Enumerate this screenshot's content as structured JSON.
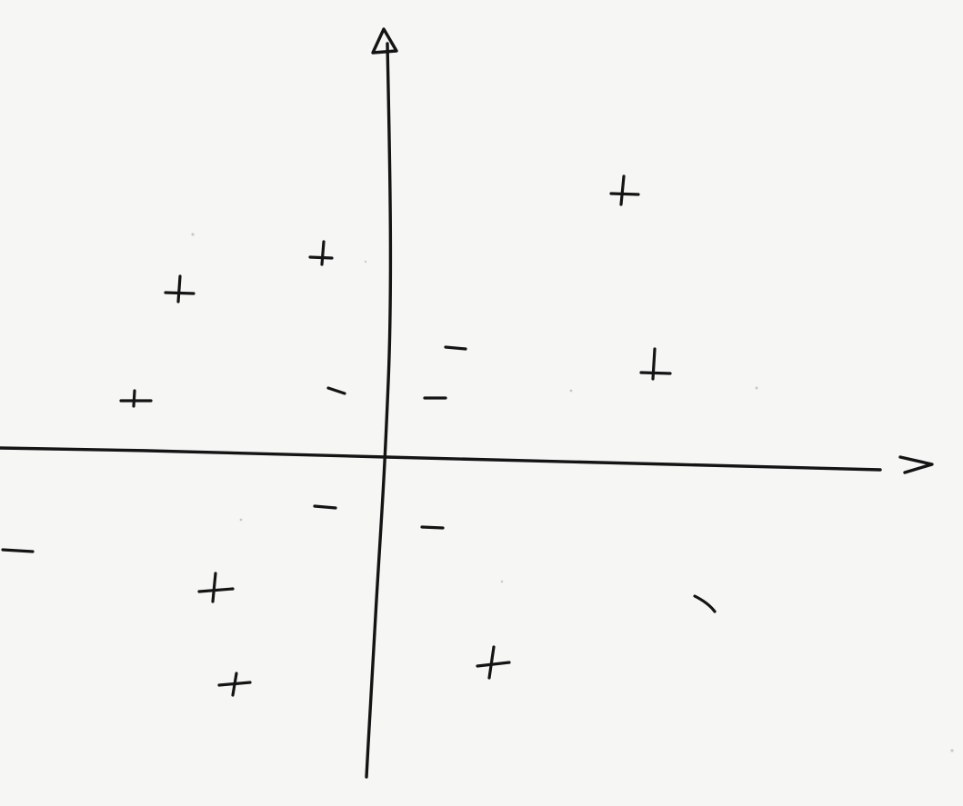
{
  "diagram": {
    "kind": "hand-drawn scatter sketch on paper",
    "ink_color": "#141414",
    "paper_color": "#f6f6f4",
    "axes": {
      "horizontal": {
        "arrow": "right"
      },
      "vertical": {
        "arrow": "up"
      }
    },
    "points": [
      {
        "label": "positive",
        "quadrant": "upper-right"
      },
      {
        "label": "positive",
        "quadrant": "upper-right"
      },
      {
        "label": "negative",
        "quadrant": "upper-right"
      },
      {
        "label": "negative",
        "quadrant": "upper-right"
      },
      {
        "label": "positive",
        "quadrant": "upper-left"
      },
      {
        "label": "positive",
        "quadrant": "upper-left"
      },
      {
        "label": "positive",
        "quadrant": "upper-left"
      },
      {
        "label": "negative",
        "quadrant": "upper-left"
      },
      {
        "label": "negative",
        "quadrant": "lower-left"
      },
      {
        "label": "negative",
        "quadrant": "lower-left"
      },
      {
        "label": "positive",
        "quadrant": "lower-left"
      },
      {
        "label": "positive",
        "quadrant": "lower-left"
      },
      {
        "label": "negative",
        "quadrant": "lower-right"
      },
      {
        "label": "positive",
        "quadrant": "lower-right"
      },
      {
        "label": "negative",
        "quadrant": "lower-right"
      }
    ]
  }
}
